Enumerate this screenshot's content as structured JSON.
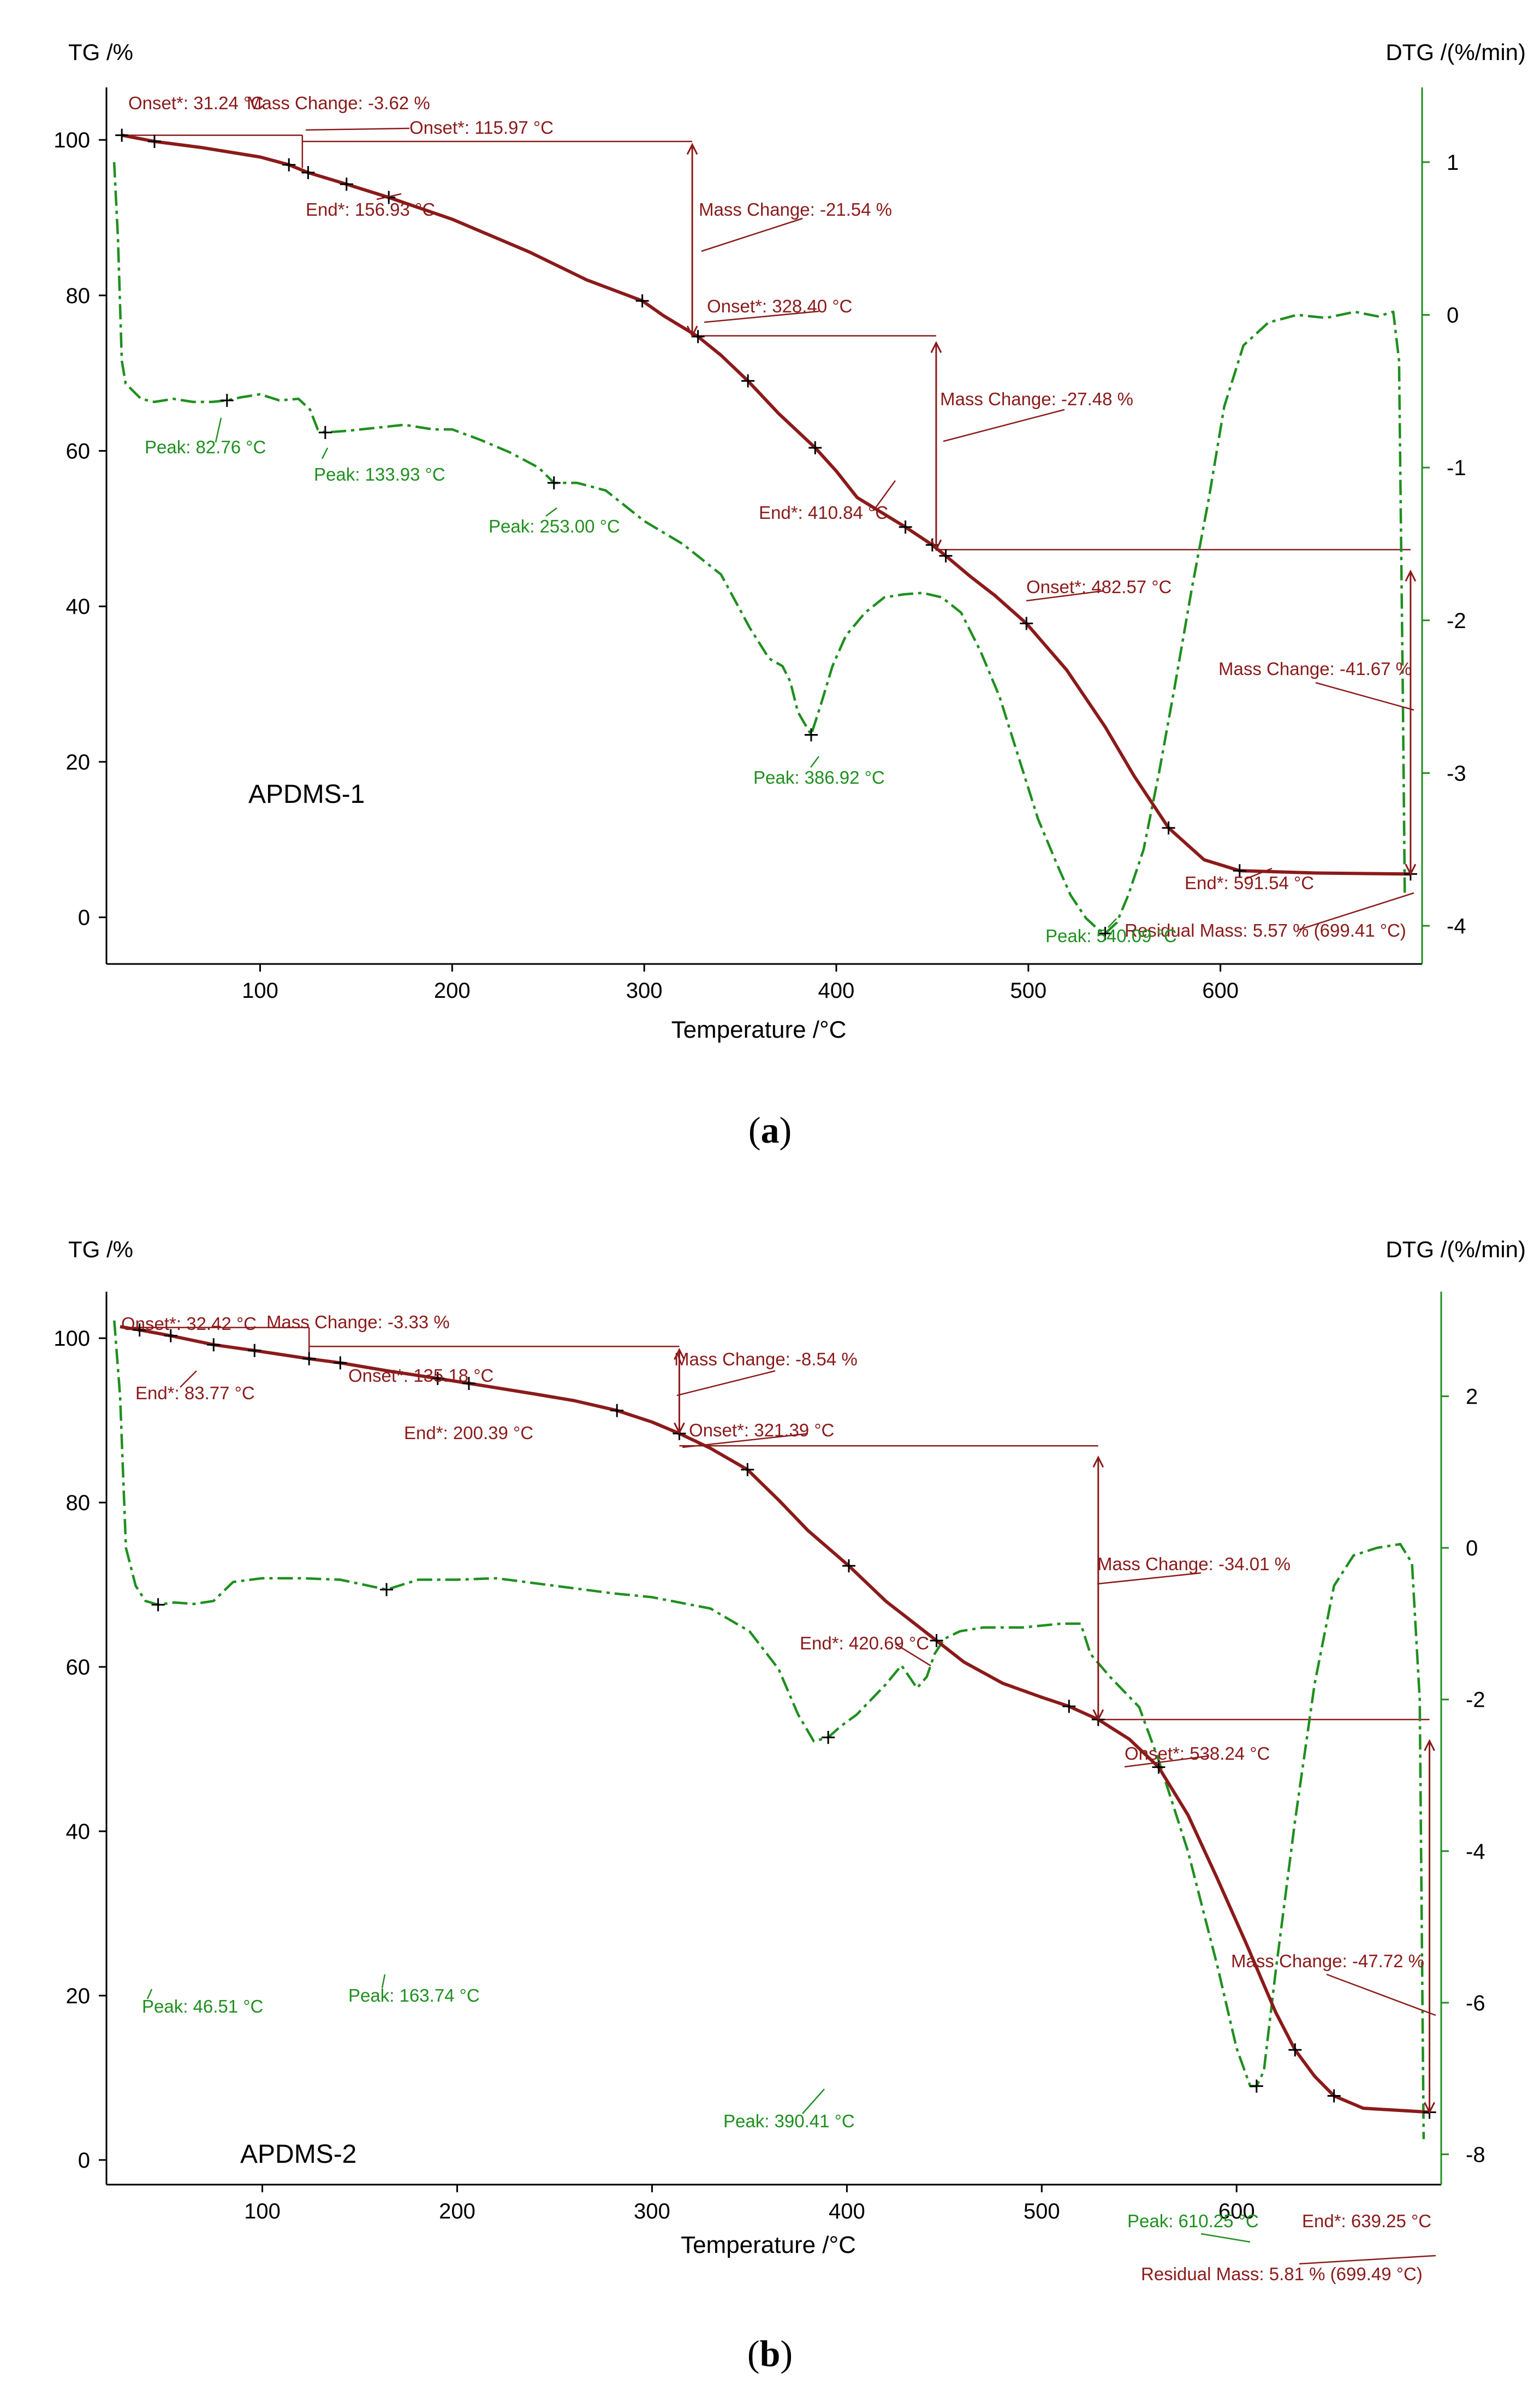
{
  "colors": {
    "tg": "#8b1a1a",
    "dtg": "#1f8f1f",
    "axis_left": "#000000",
    "axis_right": "#1f8f1f",
    "annot": "#8b1a1a"
  },
  "captions": {
    "a_letter": "a",
    "b_letter": "b"
  },
  "chart_data": [
    {
      "type": "line",
      "panel": "a",
      "title": "APDMS-1",
      "ylabel_left": "TG /%",
      "ylabel_right": "DTG /(%/min)",
      "xlabel": "Temperature /°C",
      "xlim": [
        20,
        705
      ],
      "ylim_left": [
        -6,
        105
      ],
      "ylim_right": [
        -4.25,
        1.4
      ],
      "x_ticks": [
        100,
        200,
        300,
        400,
        500,
        600
      ],
      "y_left_ticks": [
        0,
        20,
        40,
        60,
        80,
        100
      ],
      "y_right_ticks": [
        1,
        0,
        -1,
        -2,
        -3,
        -4
      ],
      "series": [
        {
          "name": "TG",
          "axis": "left",
          "x": [
            28,
            45,
            70,
            100,
            115,
            125,
            145,
            167,
            200,
            240,
            270,
            299,
            310,
            328,
            340,
            354,
            370,
            389,
            400,
            410.84,
            430,
            436,
            450,
            457,
            470,
            482.57,
            499,
            520,
            540,
            555,
            573,
            591.54,
            610,
            650,
            699
          ],
          "y": [
            100.6,
            99.8,
            99.0,
            97.8,
            96.8,
            95.8,
            94.3,
            92.6,
            89.8,
            85.6,
            82.0,
            79.3,
            77.4,
            74.7,
            72.3,
            69.0,
            64.8,
            60.4,
            57.4,
            54.0,
            51.1,
            50.2,
            47.9,
            46.5,
            43.8,
            41.4,
            37.8,
            31.8,
            24.5,
            18.2,
            11.5,
            7.4,
            6.0,
            5.7,
            5.57
          ],
          "markers_x": [
            28,
            45,
            115,
            125,
            145,
            167,
            299,
            328,
            354,
            389,
            436,
            450,
            457,
            499,
            573,
            610,
            699
          ]
        },
        {
          "name": "DTG",
          "axis": "right",
          "x": [
            24,
            26,
            28,
            30,
            34,
            38,
            45,
            55,
            65,
            75,
            82.76,
            90,
            100,
            110,
            120,
            126,
            130,
            133.93,
            145,
            160,
            175,
            190,
            200,
            215,
            230,
            245,
            253.0,
            265,
            280,
            300,
            320,
            340,
            355,
            365,
            372,
            376,
            380,
            386.92,
            392,
            398,
            405,
            415,
            425,
            435,
            445,
            455,
            465,
            475,
            485,
            495,
            505,
            515,
            522,
            530,
            536,
            540,
            546,
            552,
            560,
            568,
            576,
            585,
            594,
            602,
            612,
            625,
            640,
            655,
            670,
            682,
            690,
            693,
            695,
            696
          ],
          "y": [
            1.0,
            0.5,
            -0.3,
            -0.45,
            -0.5,
            -0.55,
            -0.57,
            -0.55,
            -0.57,
            -0.57,
            -0.56,
            -0.54,
            -0.52,
            -0.56,
            -0.55,
            -0.62,
            -0.75,
            -0.77,
            -0.76,
            -0.74,
            -0.72,
            -0.75,
            -0.75,
            -0.82,
            -0.9,
            -1.0,
            -1.1,
            -1.1,
            -1.15,
            -1.35,
            -1.5,
            -1.7,
            -2.05,
            -2.25,
            -2.3,
            -2.4,
            -2.6,
            -2.75,
            -2.55,
            -2.3,
            -2.1,
            -1.95,
            -1.85,
            -1.83,
            -1.82,
            -1.85,
            -1.95,
            -2.2,
            -2.5,
            -2.9,
            -3.3,
            -3.6,
            -3.8,
            -3.95,
            -4.02,
            -4.05,
            -3.98,
            -3.8,
            -3.5,
            -3.0,
            -2.45,
            -1.8,
            -1.2,
            -0.6,
            -0.2,
            -0.05,
            -0.0,
            -0.02,
            0.02,
            -0.01,
            0.02,
            -0.3,
            -2.5,
            -3.8
          ],
          "markers_x": [
            82.76,
            133.93,
            253.0,
            386.92,
            540
          ]
        }
      ],
      "annotations": {
        "panel_label": "APDMS-1",
        "onset1": "Onset*: 31.24 °C",
        "mass_change1": "Mass Change: -3.62 %",
        "onset2": "Onset*: 115.97 °C",
        "end2": "End*: 156.93 °C",
        "mass_change2": "Mass Change: -21.54 %",
        "onset3": "Onset*: 328.40 °C",
        "mass_change3": "Mass Change: -27.48 %",
        "end3": "End*: 410.84 °C",
        "onset4": "Onset*: 482.57 °C",
        "mass_change4": "Mass Change: -41.67 %",
        "end4": "End*: 591.54 °C",
        "residual": "Residual Mass: 5.57 % (699.41 °C)",
        "peak1": "Peak: 82.76 °C",
        "peak2": "Peak: 133.93 °C",
        "peak3": "Peak: 253.00 °C",
        "peak4": "Peak: 386.92 °C",
        "peak5": "Peak: 540.09 °C"
      }
    },
    {
      "type": "line",
      "panel": "b",
      "title": "APDMS-2",
      "ylabel_left": "TG /%",
      "ylabel_right": "DTG /(%/min)",
      "xlabel": "Temperature /°C",
      "xlim": [
        20,
        705
      ],
      "ylim_left": [
        -3,
        104
      ],
      "ylim_right": [
        -8.4,
        3.2
      ],
      "x_ticks": [
        100,
        200,
        300,
        400,
        500,
        600
      ],
      "y_left_ticks": [
        0,
        20,
        40,
        60,
        80,
        100
      ],
      "y_right_ticks": [
        2,
        0,
        -2,
        -4,
        -6,
        -8
      ],
      "series": [
        {
          "name": "TG",
          "axis": "left",
          "x": [
            27,
            37,
            53,
            75,
            96,
            124,
            140,
            165,
            190,
            206,
            240,
            260,
            282,
            300,
            314,
            330,
            349,
            365,
            380,
            401,
            420,
            446,
            460,
            480,
            500,
            514,
            529,
            545,
            560,
            575,
            590,
            605,
            620,
            630,
            640,
            650,
            665,
            699
          ],
          "y": [
            101.4,
            101.0,
            100.3,
            99.2,
            98.5,
            97.5,
            97.0,
            96.0,
            95.1,
            94.5,
            93.2,
            92.4,
            91.2,
            89.8,
            88.4,
            86.6,
            84.0,
            80.3,
            76.6,
            72.3,
            68.0,
            63.2,
            60.6,
            58.0,
            56.3,
            55.2,
            53.6,
            51.2,
            47.8,
            42.0,
            34.3,
            26.3,
            18.0,
            13.4,
            10.2,
            7.8,
            6.3,
            5.81
          ],
          "markers_x": [
            37,
            53,
            75,
            96,
            124,
            140,
            190,
            206,
            282,
            314,
            349,
            401,
            446,
            514,
            529,
            560,
            630,
            650,
            699
          ]
        },
        {
          "name": "DTG",
          "axis": "right",
          "x": [
            24,
            27,
            30,
            35,
            40,
            46.51,
            55,
            65,
            75,
            85,
            100,
            120,
            140,
            163.74,
            180,
            200,
            220,
            250,
            280,
            300,
            330,
            350,
            365,
            375,
            383,
            390.41,
            397,
            405,
            420,
            428,
            436,
            441,
            445,
            450,
            458,
            470,
            490,
            510,
            520,
            525,
            535,
            550,
            560,
            575,
            590,
            600,
            607,
            610.25,
            614,
            620,
            630,
            640,
            650,
            660,
            672,
            684,
            690,
            694,
            696
          ],
          "y": [
            3.0,
            2.0,
            0.0,
            -0.5,
            -0.7,
            -0.75,
            -0.72,
            -0.74,
            -0.7,
            -0.45,
            -0.4,
            -0.4,
            -0.42,
            -0.55,
            -0.42,
            -0.42,
            -0.4,
            -0.5,
            -0.6,
            -0.65,
            -0.8,
            -1.1,
            -1.6,
            -2.2,
            -2.55,
            -2.5,
            -2.35,
            -2.2,
            -1.8,
            -1.55,
            -1.85,
            -1.7,
            -1.4,
            -1.2,
            -1.1,
            -1.05,
            -1.05,
            -1.0,
            -1.0,
            -1.4,
            -1.7,
            -2.1,
            -2.8,
            -4.0,
            -5.5,
            -6.6,
            -7.1,
            -7.1,
            -6.9,
            -5.6,
            -3.6,
            -1.8,
            -0.5,
            -0.1,
            0.0,
            0.05,
            -0.2,
            -2.0,
            -7.8
          ],
          "markers_x": [
            46.51,
            163.74,
            390.41,
            610.25
          ]
        }
      ],
      "annotations": {
        "panel_label": "APDMS-2",
        "onset1": "Onset*: 32.42 °C",
        "mass_change1": "Mass Change: -3.33 %",
        "end1": "End*: 83.77 °C",
        "onset2": "Onset*: 135.18 °C",
        "end2": "End*: 200.39 °C",
        "mass_change2": "Mass Change: -8.54 %",
        "onset3": "Onset*: 321.39 °C",
        "mass_change3": "Mass Change: -34.01 %",
        "end3": "End*: 420.69 °C",
        "onset4": "Onset*: 538.24 °C",
        "mass_change4": "Mass Change: -47.72 %",
        "end4": "End*: 639.25 °C",
        "residual": "Residual Mass: 5.81 % (699.49 °C)",
        "peak1": "Peak: 46.51 °C",
        "peak2": "Peak: 163.74 °C",
        "peak3": "Peak: 390.41 °C",
        "peak4": "Peak: 610.25 °C"
      }
    }
  ]
}
